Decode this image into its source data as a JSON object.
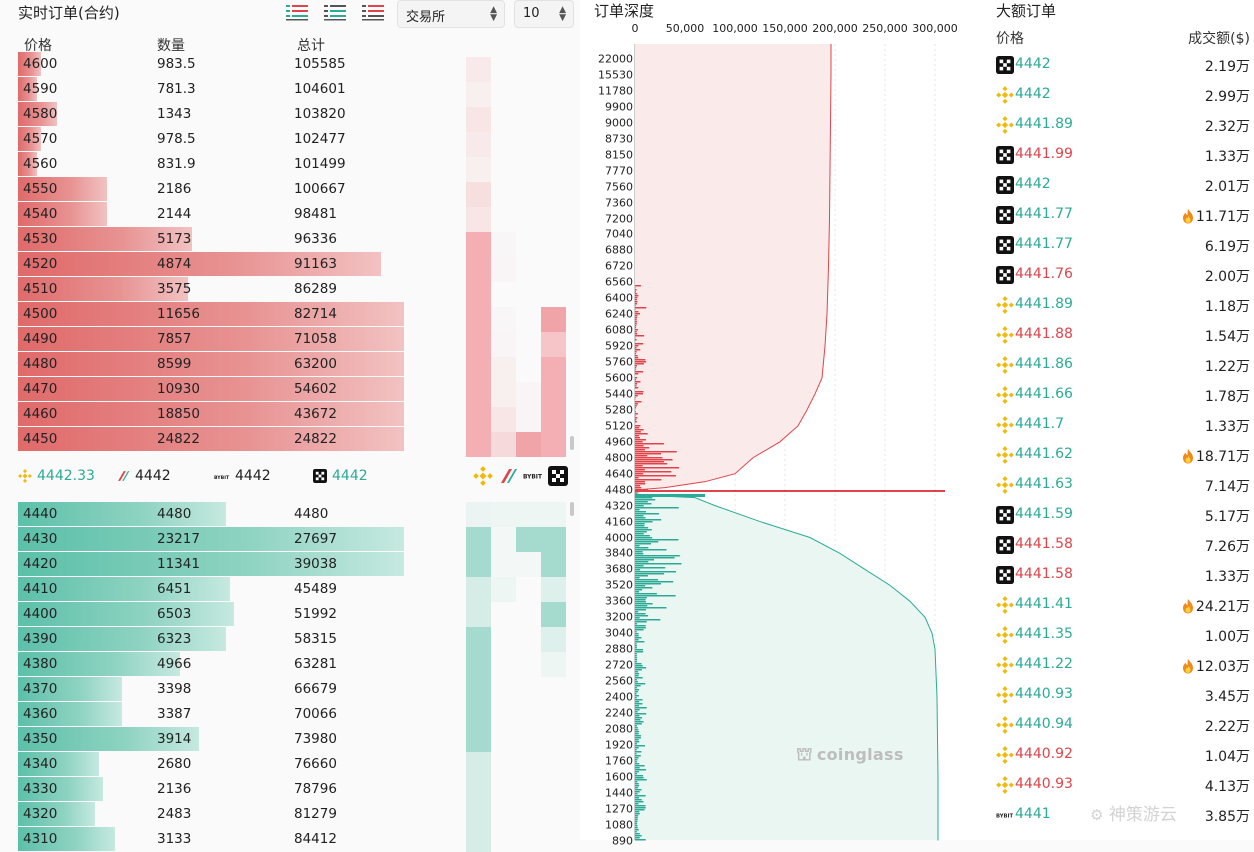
{
  "orderbook": {
    "title": "实时订单(合约)",
    "exchange_select": "交易所",
    "depth_select": "10",
    "headers": {
      "price": "价格",
      "qty": "数量",
      "total": "总计"
    },
    "asks": [
      {
        "price": "4600",
        "qty": "983.5",
        "total": "105585",
        "bar_frac": 0.06
      },
      {
        "price": "4590",
        "qty": "781.3",
        "total": "104601",
        "bar_frac": 0.05
      },
      {
        "price": "4580",
        "qty": "1343",
        "total": "103820",
        "bar_frac": 0.1
      },
      {
        "price": "4570",
        "qty": "978.5",
        "total": "102477",
        "bar_frac": 0.06
      },
      {
        "price": "4560",
        "qty": "831.9",
        "total": "101499",
        "bar_frac": 0.05
      },
      {
        "price": "4550",
        "qty": "2186",
        "total": "100667",
        "bar_frac": 0.23
      },
      {
        "price": "4540",
        "qty": "2144",
        "total": "98481",
        "bar_frac": 0.23
      },
      {
        "price": "4530",
        "qty": "5173",
        "total": "96336",
        "bar_frac": 0.45
      },
      {
        "price": "4520",
        "qty": "4874",
        "total": "91163",
        "bar_frac": 0.94
      },
      {
        "price": "4510",
        "qty": "3575",
        "total": "86289",
        "bar_frac": 0.44
      },
      {
        "price": "4500",
        "qty": "11656",
        "total": "82714",
        "bar_frac": 1.0
      },
      {
        "price": "4490",
        "qty": "7857",
        "total": "71058",
        "bar_frac": 1.0
      },
      {
        "price": "4480",
        "qty": "8599",
        "total": "63200",
        "bar_frac": 1.0
      },
      {
        "price": "4470",
        "qty": "10930",
        "total": "54602",
        "bar_frac": 1.0
      },
      {
        "price": "4460",
        "qty": "18850",
        "total": "43672",
        "bar_frac": 1.0
      },
      {
        "price": "4450",
        "qty": "24822",
        "total": "24822",
        "bar_frac": 1.0
      }
    ],
    "mid": [
      {
        "exchange": "binance",
        "price": "4442.33",
        "trend": "up"
      },
      {
        "exchange": "bitget",
        "price": "4442",
        "trend": "flat"
      },
      {
        "exchange": "bybit",
        "price": "4442",
        "trend": "flat"
      },
      {
        "exchange": "okx",
        "price": "4442",
        "trend": "up"
      }
    ],
    "bids": [
      {
        "price": "4440",
        "qty": "4480",
        "total": "4480",
        "bar_frac": 0.54
      },
      {
        "price": "4430",
        "qty": "23217",
        "total": "27697",
        "bar_frac": 1.0
      },
      {
        "price": "4420",
        "qty": "11341",
        "total": "39038",
        "bar_frac": 1.0
      },
      {
        "price": "4410",
        "qty": "6451",
        "total": "45489",
        "bar_frac": 0.55
      },
      {
        "price": "4400",
        "qty": "6503",
        "total": "51992",
        "bar_frac": 0.56
      },
      {
        "price": "4390",
        "qty": "6323",
        "total": "58315",
        "bar_frac": 0.54
      },
      {
        "price": "4380",
        "qty": "4966",
        "total": "63281",
        "bar_frac": 0.42
      },
      {
        "price": "4370",
        "qty": "3398",
        "total": "66679",
        "bar_frac": 0.27
      },
      {
        "price": "4360",
        "qty": "3387",
        "total": "70066",
        "bar_frac": 0.27
      },
      {
        "price": "4350",
        "qty": "3914",
        "total": "73980",
        "bar_frac": 0.47
      },
      {
        "price": "4340",
        "qty": "2680",
        "total": "76660",
        "bar_frac": 0.21
      },
      {
        "price": "4330",
        "qty": "2136",
        "total": "78796",
        "bar_frac": 0.22
      },
      {
        "price": "4320",
        "qty": "2483",
        "total": "81279",
        "bar_frac": 0.2
      },
      {
        "price": "4310",
        "qty": "3133",
        "total": "84412",
        "bar_frac": 0.25
      }
    ]
  },
  "depth": {
    "title": "订单深度",
    "watermark": "coinglass",
    "colors": {
      "ask": "#e0434a",
      "bid": "#2bab96"
    }
  },
  "chart_data": {
    "type": "area",
    "title": "订单深度",
    "x_ticks": [
      "0",
      "50,000",
      "100,000",
      "150,000",
      "200,000",
      "250,000",
      "300,000"
    ],
    "xlim": [
      0,
      330000
    ],
    "y_ticks": [
      "22000",
      "15530",
      "11780",
      "9900",
      "9000",
      "8730",
      "8150",
      "7770",
      "7560",
      "7360",
      "7200",
      "7040",
      "6880",
      "6720",
      "6560",
      "6400",
      "6240",
      "6080",
      "5920",
      "5760",
      "5600",
      "5440",
      "5280",
      "5120",
      "4960",
      "4800",
      "4640",
      "4480",
      "4320",
      "4160",
      "4000",
      "3840",
      "3680",
      "3520",
      "3360",
      "3200",
      "3040",
      "2880",
      "2720",
      "2560",
      "2400",
      "2240",
      "2080",
      "1920",
      "1760",
      "1600",
      "1440",
      "1270",
      "1080",
      "890"
    ],
    "ask_cumulative": [
      [
        22000,
        196000
      ],
      [
        15530,
        196000
      ],
      [
        9000,
        195500
      ],
      [
        7770,
        195000
      ],
      [
        7200,
        194500
      ],
      [
        6720,
        193500
      ],
      [
        6240,
        192000
      ],
      [
        5920,
        190000
      ],
      [
        5600,
        187000
      ],
      [
        5440,
        180000
      ],
      [
        5280,
        172000
      ],
      [
        5120,
        163000
      ],
      [
        4960,
        145000
      ],
      [
        4800,
        118000
      ],
      [
        4640,
        100000
      ],
      [
        4560,
        70000
      ],
      [
        4500,
        30000
      ],
      [
        4480,
        5000
      ]
    ],
    "bid_cumulative": [
      [
        4440,
        5000
      ],
      [
        4400,
        60000
      ],
      [
        4320,
        80000
      ],
      [
        4160,
        125000
      ],
      [
        4000,
        175000
      ],
      [
        3840,
        205000
      ],
      [
        3680,
        230000
      ],
      [
        3520,
        255000
      ],
      [
        3360,
        275000
      ],
      [
        3200,
        290000
      ],
      [
        3040,
        297000
      ],
      [
        2880,
        300000
      ],
      [
        2400,
        302000
      ],
      [
        1600,
        303000
      ],
      [
        890,
        303000
      ]
    ],
    "series": [
      {
        "name": "ask",
        "color": "#e0434a"
      },
      {
        "name": "bid",
        "color": "#2bab96"
      }
    ]
  },
  "large_orders": {
    "title": "大额订单",
    "headers": {
      "price": "价格",
      "amount": "成交额($)"
    },
    "rows": [
      {
        "exchange": "okx",
        "price": "4442",
        "side": "up",
        "amount": "2.19万",
        "hot": false
      },
      {
        "exchange": "binance",
        "price": "4442",
        "side": "up",
        "amount": "2.99万",
        "hot": false
      },
      {
        "exchange": "binance",
        "price": "4441.89",
        "side": "up",
        "amount": "2.32万",
        "hot": false
      },
      {
        "exchange": "okx",
        "price": "4441.99",
        "side": "down",
        "amount": "1.33万",
        "hot": false
      },
      {
        "exchange": "okx",
        "price": "4442",
        "side": "up",
        "amount": "2.01万",
        "hot": false
      },
      {
        "exchange": "okx",
        "price": "4441.77",
        "side": "up",
        "amount": "11.71万",
        "hot": true
      },
      {
        "exchange": "okx",
        "price": "4441.77",
        "side": "up",
        "amount": "6.19万",
        "hot": false
      },
      {
        "exchange": "okx",
        "price": "4441.76",
        "side": "down",
        "amount": "2.00万",
        "hot": false
      },
      {
        "exchange": "binance",
        "price": "4441.89",
        "side": "up",
        "amount": "1.18万",
        "hot": false
      },
      {
        "exchange": "binance",
        "price": "4441.88",
        "side": "down",
        "amount": "1.54万",
        "hot": false
      },
      {
        "exchange": "binance",
        "price": "4441.86",
        "side": "up",
        "amount": "1.22万",
        "hot": false
      },
      {
        "exchange": "binance",
        "price": "4441.66",
        "side": "up",
        "amount": "1.78万",
        "hot": false
      },
      {
        "exchange": "binance",
        "price": "4441.7",
        "side": "up",
        "amount": "1.33万",
        "hot": false
      },
      {
        "exchange": "binance",
        "price": "4441.62",
        "side": "up",
        "amount": "18.71万",
        "hot": true
      },
      {
        "exchange": "binance",
        "price": "4441.63",
        "side": "up",
        "amount": "7.14万",
        "hot": false
      },
      {
        "exchange": "okx",
        "price": "4441.59",
        "side": "up",
        "amount": "5.17万",
        "hot": false
      },
      {
        "exchange": "okx",
        "price": "4441.58",
        "side": "down",
        "amount": "7.26万",
        "hot": false
      },
      {
        "exchange": "okx",
        "price": "4441.58",
        "side": "down",
        "amount": "1.33万",
        "hot": false
      },
      {
        "exchange": "binance",
        "price": "4441.41",
        "side": "up",
        "amount": "24.21万",
        "hot": true
      },
      {
        "exchange": "binance",
        "price": "4441.35",
        "side": "up",
        "amount": "1.00万",
        "hot": false
      },
      {
        "exchange": "binance",
        "price": "4441.22",
        "side": "up",
        "amount": "12.03万",
        "hot": true
      },
      {
        "exchange": "binance",
        "price": "4440.93",
        "side": "up",
        "amount": "3.45万",
        "hot": false
      },
      {
        "exchange": "binance",
        "price": "4440.94",
        "side": "up",
        "amount": "2.22万",
        "hot": false
      },
      {
        "exchange": "binance",
        "price": "4440.92",
        "side": "down",
        "amount": "1.04万",
        "hot": false
      },
      {
        "exchange": "binance",
        "price": "4440.93",
        "side": "down",
        "amount": "4.13万",
        "hot": false
      },
      {
        "exchange": "bybit",
        "price": "4441",
        "side": "up",
        "amount": "3.85万",
        "hot": false
      }
    ],
    "signature_watermark": "神策游云"
  },
  "icons": {
    "binance": "binance-icon",
    "okx": "okx-icon",
    "bybit": "bybit-icon",
    "bitget": "bitget-icon",
    "fire": "fire-icon",
    "view_all": "orderbook-both-icon",
    "view_bids": "orderbook-bids-icon",
    "view_asks": "orderbook-asks-icon"
  }
}
